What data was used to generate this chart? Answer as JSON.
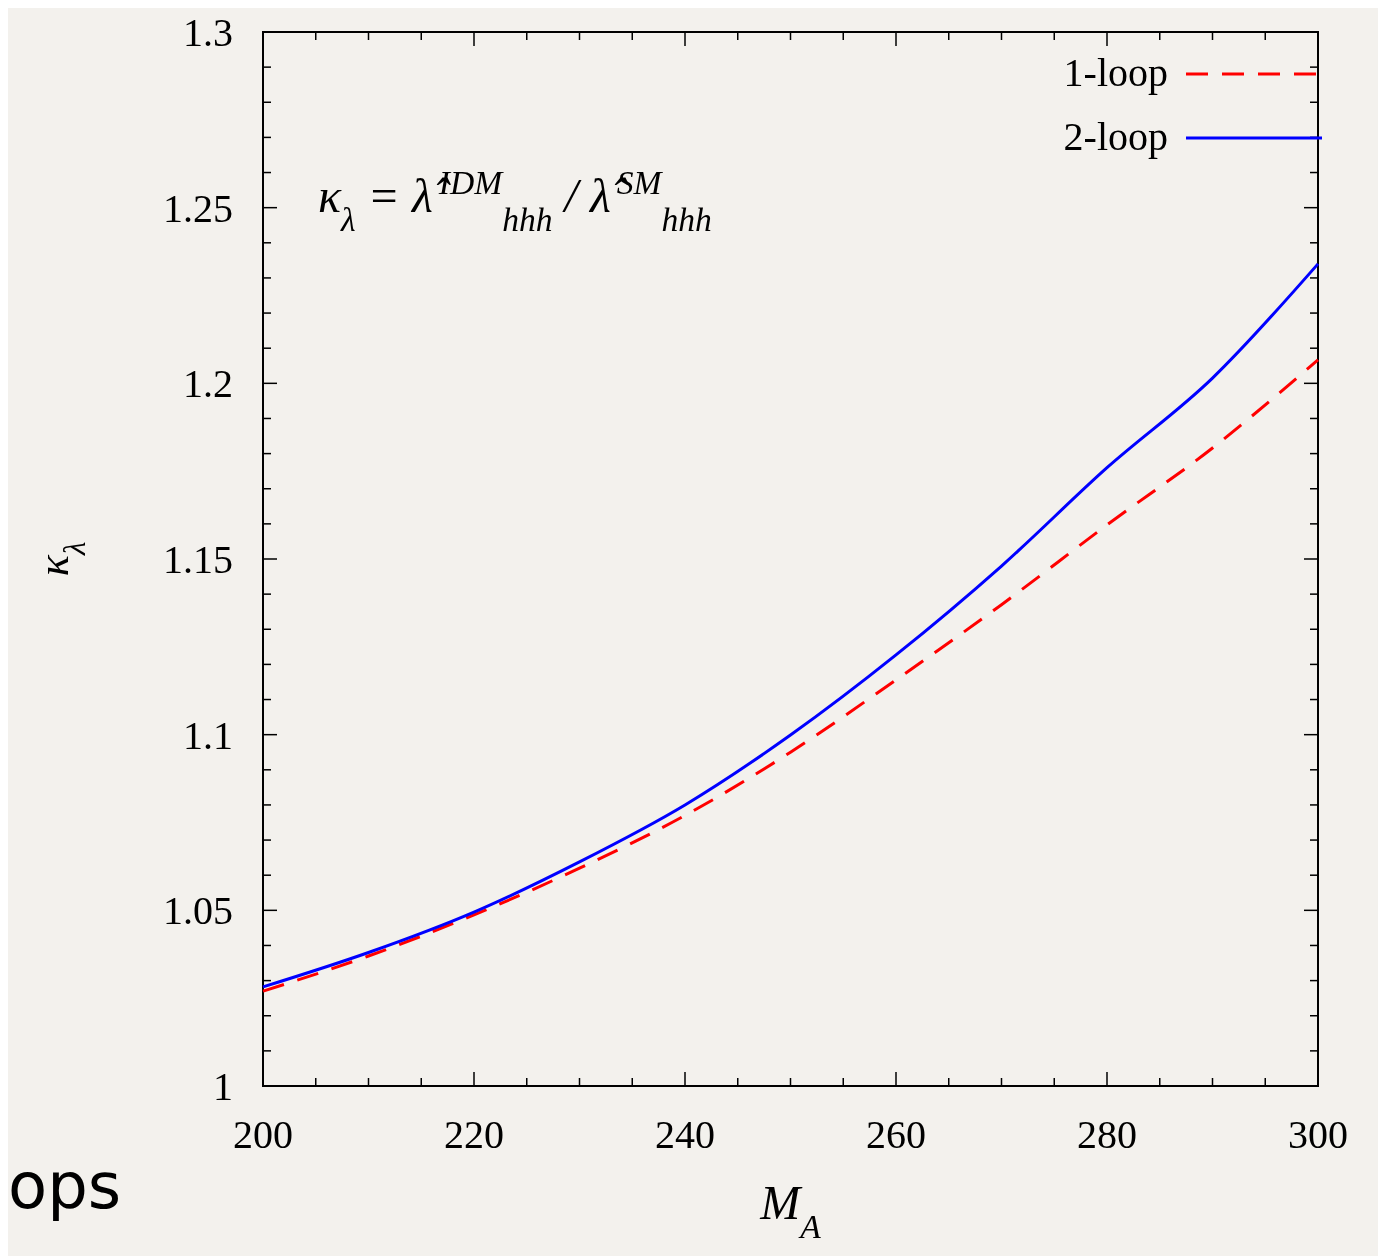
{
  "chart_data": {
    "type": "line",
    "xlabel": "M$_{A}$",
    "ylabel": "κ$_{λ}$",
    "annotations": [
      "κ$_{λ}$ = λ̂$^{IDM}$$_{hhh}$ / λ̂$^{SM}$$_{hhh}$",
      "ops"
    ],
    "x": [
      200,
      210,
      220,
      230,
      240,
      250,
      260,
      270,
      280,
      290,
      300
    ],
    "series": [
      {
        "name": "1-loop",
        "color": "#ff0000",
        "line_style": "dashed",
        "values": [
          1.027,
          1.037,
          1.0487,
          1.062,
          1.077,
          1.095,
          1.1156,
          1.137,
          1.1597,
          1.1816,
          1.2067
        ]
      },
      {
        "name": "2-loop",
        "color": "#0000ff",
        "line_style": "solid",
        "values": [
          1.0282,
          1.038,
          1.0495,
          1.0638,
          1.08,
          1.0999,
          1.1227,
          1.148,
          1.176,
          1.2015,
          1.234
        ]
      }
    ],
    "xlim": [
      200,
      300
    ],
    "ylim": [
      1,
      1.3
    ],
    "xticks": [
      200,
      {
        "value": 205,
        "label": null
      },
      220,
      {
        "value": 215,
        "label": null
      },
      {
        "value": 210,
        "label": null
      },
      {
        "value": 225,
        "label": null
      },
      {
        "value": 230,
        "label": null
      },
      {
        "value": 235,
        "label": null
      },
      240,
      {
        "value": 245,
        "label": null
      },
      {
        "value": 250,
        "label": null
      },
      {
        "value": 255,
        "label": null
      },
      260,
      {
        "value": 265,
        "label": null
      },
      {
        "value": 270,
        "label": null
      },
      {
        "value": 275,
        "label": null
      },
      280,
      {
        "value": 285,
        "label": null
      },
      {
        "value": 290,
        "label": null
      },
      {
        "value": 295,
        "label": null
      },
      300
    ],
    "yticks": [
      1,
      {
        "value": 1.01,
        "label": null
      },
      {
        "value": 1.02,
        "label": null
      },
      {
        "value": 1.03,
        "label": null
      },
      {
        "value": 1.04,
        "label": null
      },
      1.05,
      {
        "value": 1.06,
        "label": null
      },
      {
        "value": 1.07,
        "label": null
      },
      {
        "value": 1.08,
        "label": null
      },
      {
        "value": 1.09,
        "label": null
      },
      1.1,
      {
        "value": 1.11,
        "label": null
      },
      {
        "value": 1.12,
        "label": null
      },
      {
        "value": 1.13,
        "label": null
      },
      {
        "value": 1.14,
        "label": null
      },
      1.15,
      {
        "value": 1.16,
        "label": null
      },
      {
        "value": 1.17,
        "label": null
      },
      {
        "value": 1.18,
        "label": null
      },
      {
        "value": 1.19,
        "label": null
      },
      1.2,
      {
        "value": 1.21,
        "label": null
      },
      {
        "value": 1.22,
        "label": null
      },
      {
        "value": 1.23,
        "label": null
      },
      {
        "value": 1.24,
        "label": null
      },
      1.25,
      {
        "value": 1.26,
        "label": null
      },
      {
        "value": 1.27,
        "label": null
      },
      {
        "value": 1.28,
        "label": null
      },
      {
        "value": 1.29,
        "label": null
      },
      1.3
    ],
    "legend": "top right",
    "grid": false,
    "marker": "none"
  }
}
